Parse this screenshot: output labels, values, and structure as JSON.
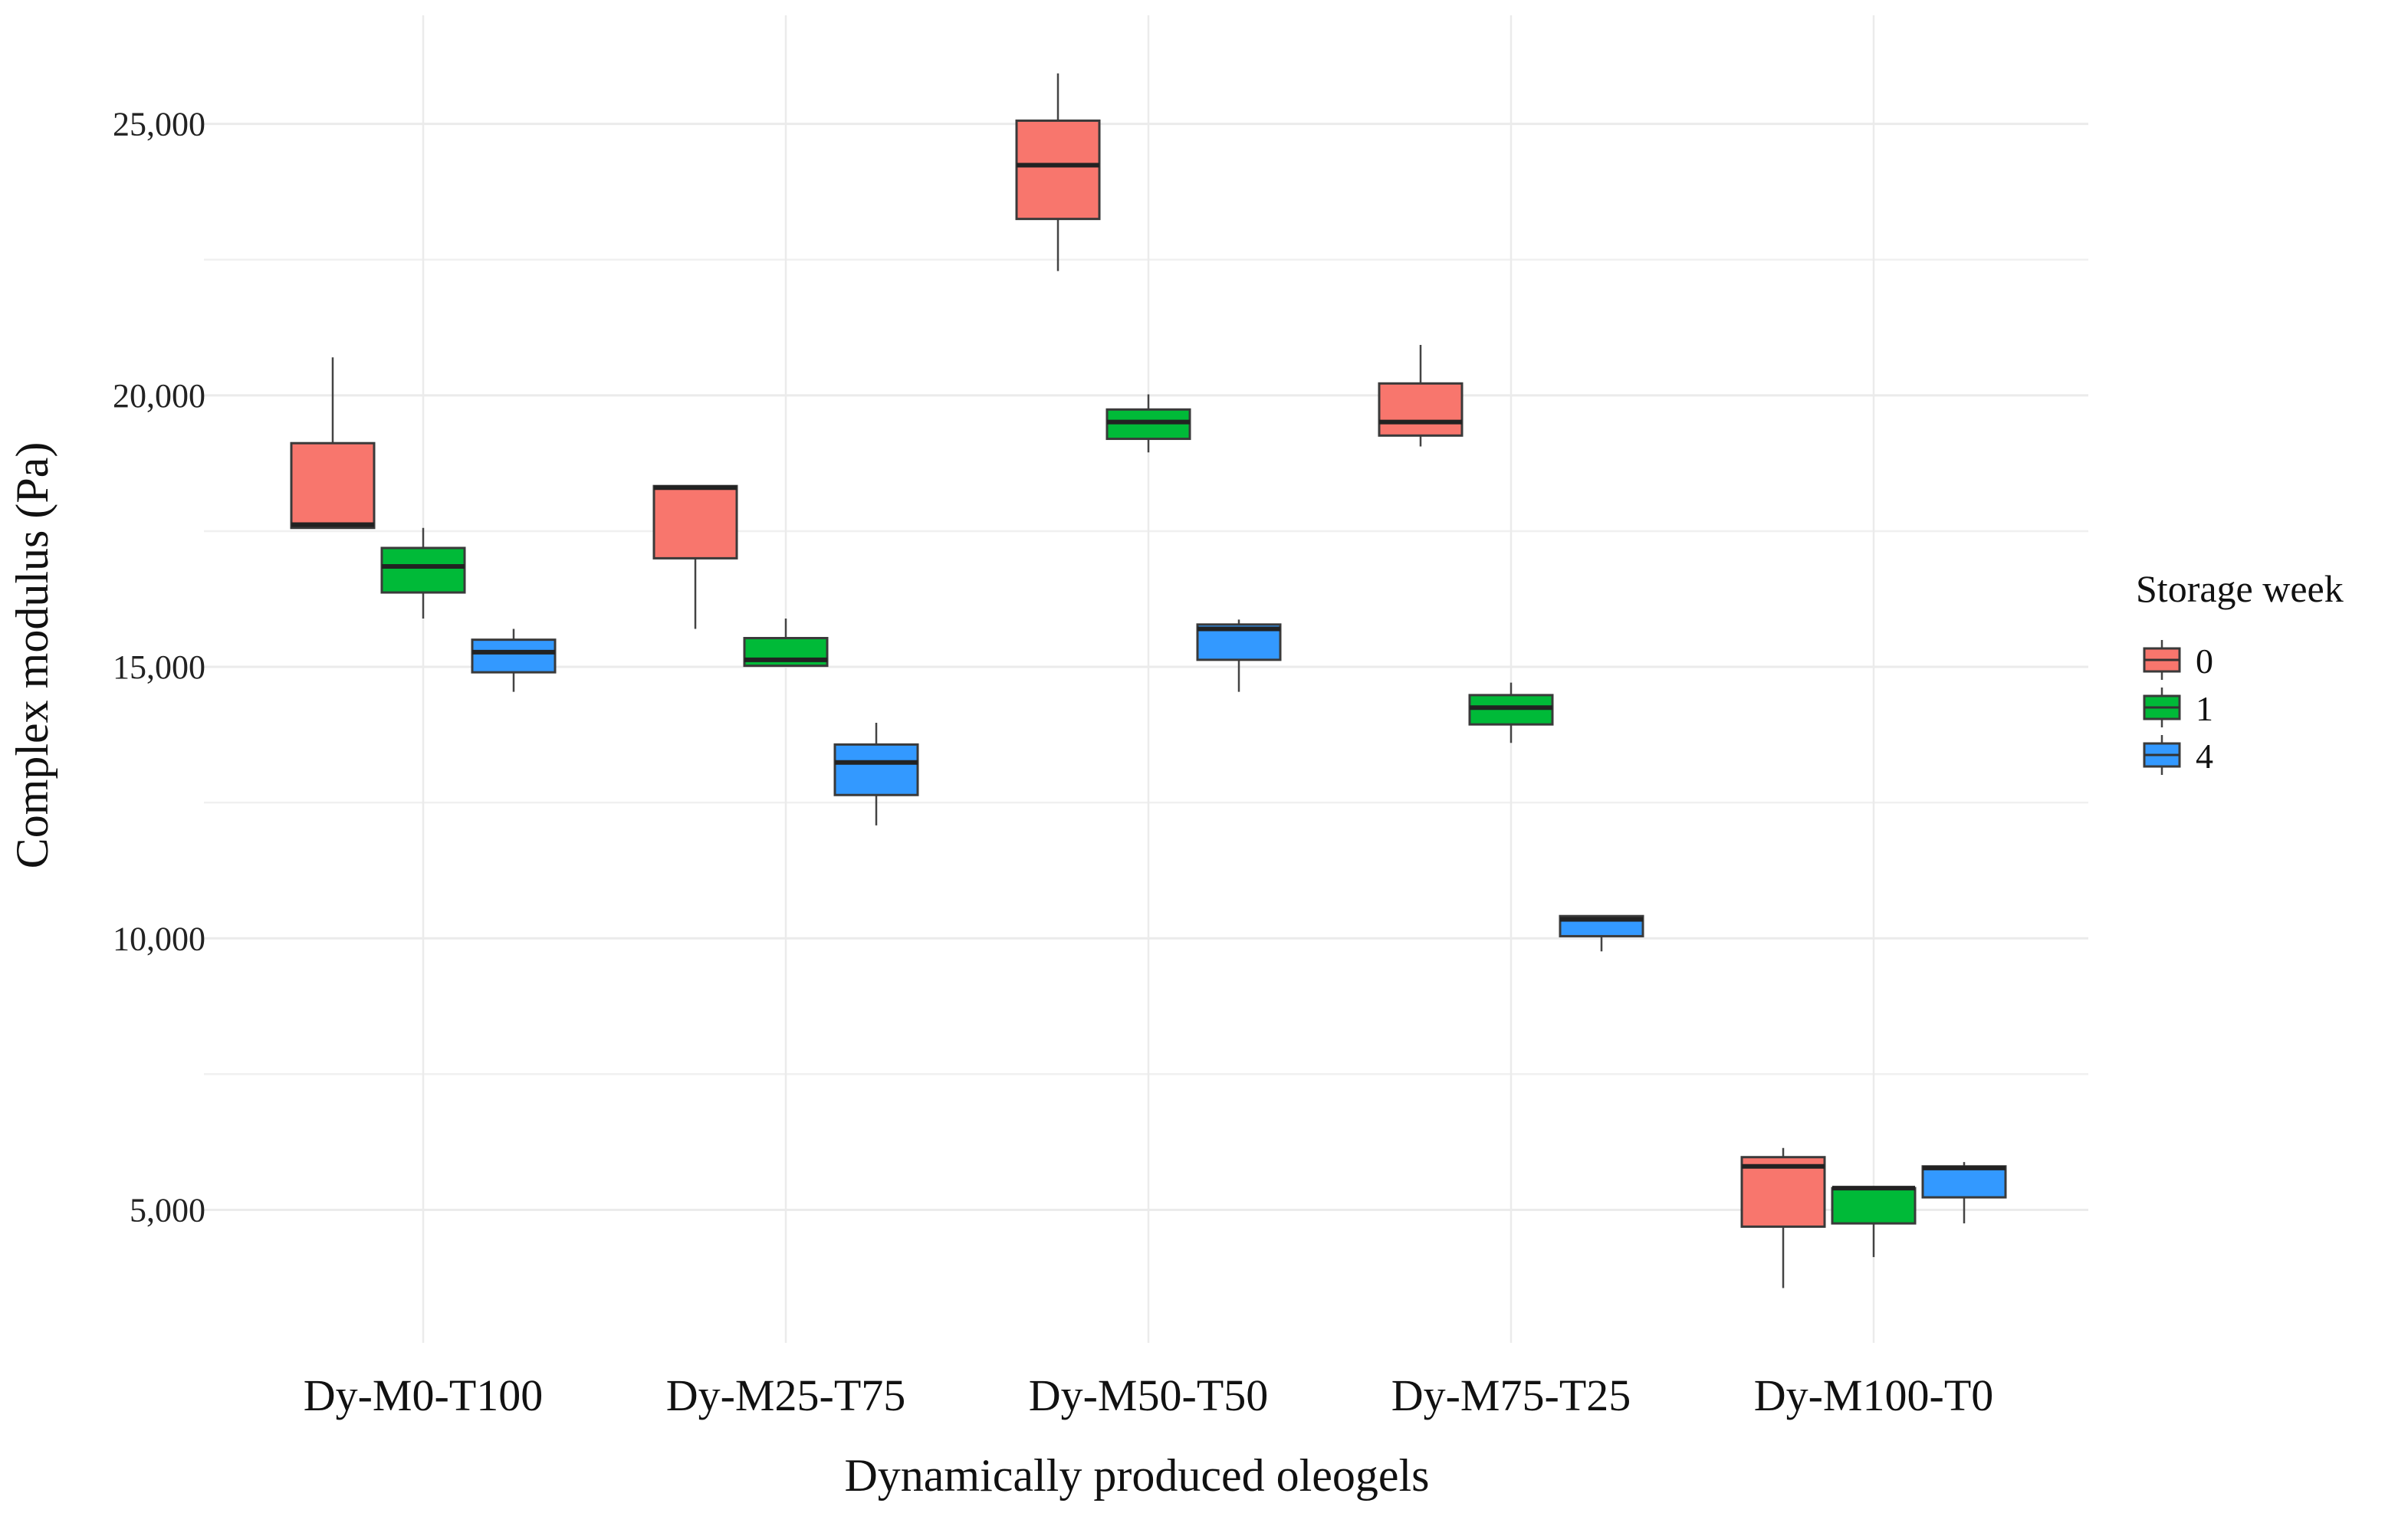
{
  "chart_data": {
    "type": "boxplot",
    "title": "",
    "xlabel": "Dynamically produced oleogels",
    "ylabel": "Complex modulus (Pa)",
    "ylim": [
      2550,
      27000
    ],
    "yticks": [
      5000,
      10000,
      15000,
      20000,
      25000
    ],
    "ytick_labels": [
      "5,000",
      "10,000",
      "15,000",
      "20,000",
      "25,000"
    ],
    "grid": true,
    "legend": {
      "title": "Storage week",
      "position": "right",
      "entries": [
        "0",
        "1",
        "4"
      ]
    },
    "colors": {
      "0": "#F8766D",
      "1": "#00BA38",
      "4": "#3399FF"
    },
    "categories": [
      "Dy-M0-T100",
      "Dy-M25-T75",
      "Dy-M50-T50",
      "Dy-M75-T25",
      "Dy-M100-T0"
    ],
    "series": [
      {
        "name": "0",
        "boxes": [
          {
            "min": 17560,
            "q1": 17560,
            "median": 17620,
            "q3": 19120,
            "max": 20700
          },
          {
            "min": 15700,
            "q1": 17000,
            "median": 18300,
            "q3": 18330,
            "max": 18330
          },
          {
            "min": 22290,
            "q1": 23250,
            "median": 24240,
            "q3": 25060,
            "max": 25930
          },
          {
            "min": 19060,
            "q1": 19260,
            "median": 19510,
            "q3": 20220,
            "max": 20930
          },
          {
            "min": 3560,
            "q1": 4690,
            "median": 5800,
            "q3": 5970,
            "max": 6140
          }
        ]
      },
      {
        "name": "1",
        "boxes": [
          {
            "min": 15890,
            "q1": 16370,
            "median": 16850,
            "q3": 17190,
            "max": 17560
          },
          {
            "min": 15020,
            "q1": 15020,
            "median": 15130,
            "q3": 15530,
            "max": 15890
          },
          {
            "min": 18950,
            "q1": 19200,
            "median": 19510,
            "q3": 19740,
            "max": 20020
          },
          {
            "min": 13600,
            "q1": 13940,
            "median": 14250,
            "q3": 14480,
            "max": 14710
          },
          {
            "min": 4130,
            "q1": 4750,
            "median": 5400,
            "q3": 5400,
            "max": 5430
          }
        ]
      },
      {
        "name": "4",
        "boxes": [
          {
            "min": 14540,
            "q1": 14900,
            "median": 15270,
            "q3": 15500,
            "max": 15700
          },
          {
            "min": 12080,
            "q1": 12640,
            "median": 13240,
            "q3": 13570,
            "max": 13970
          },
          {
            "min": 14540,
            "q1": 15130,
            "median": 15700,
            "q3": 15780,
            "max": 15870
          },
          {
            "min": 9760,
            "q1": 10040,
            "median": 10350,
            "q3": 10410,
            "max": 10410
          },
          {
            "min": 4750,
            "q1": 5230,
            "median": 5770,
            "q3": 5800,
            "max": 5880
          }
        ]
      }
    ]
  }
}
